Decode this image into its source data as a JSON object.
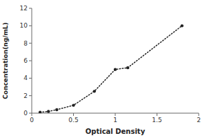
{
  "chart_data": {
    "type": "line",
    "xlabel": "Optical Density",
    "ylabel": "Concentration(ng/mL)",
    "x": [
      0.1,
      0.2,
      0.3,
      0.5,
      0.75,
      1.0,
      1.15,
      1.8
    ],
    "values": [
      0.1,
      0.2,
      0.4,
      0.9,
      2.5,
      5.0,
      5.2,
      10.0
    ],
    "xlim": [
      0,
      2
    ],
    "ylim": [
      0,
      12
    ],
    "xticks": [
      0,
      0.5,
      1,
      1.5,
      2
    ],
    "yticks": [
      0,
      2,
      4,
      6,
      8,
      10,
      12
    ],
    "color": "#222222",
    "line_style": "dotted",
    "marker": "dot",
    "grid": false
  }
}
